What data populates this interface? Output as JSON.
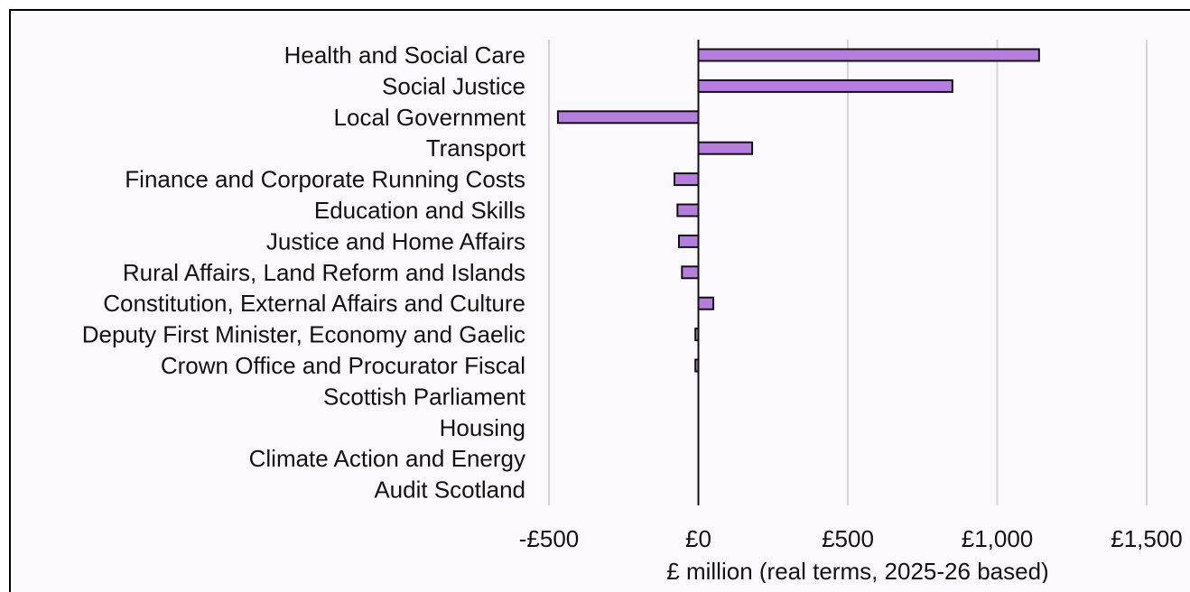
{
  "chart_data": {
    "type": "bar",
    "orientation": "horizontal",
    "title": "",
    "xlabel": "£ million (real terms, 2025-26 based)",
    "ylabel": "",
    "xlim": [
      -500,
      1500
    ],
    "grid": true,
    "legend": "none",
    "bar_color": "#b57edc",
    "x_ticks": [
      {
        "value": -500,
        "label": "-£500"
      },
      {
        "value": 0,
        "label": "£0"
      },
      {
        "value": 500,
        "label": "£500"
      },
      {
        "value": 1000,
        "label": "£1,000"
      },
      {
        "value": 1500,
        "label": "£1,500"
      }
    ],
    "categories": [
      "Health and Social Care",
      "Social Justice",
      "Local Government",
      "Transport",
      "Finance and Corporate Running Costs",
      "Education and Skills",
      "Justice and Home Affairs",
      "Rural Affairs, Land Reform and Islands",
      "Constitution, External Affairs and Culture",
      "Deputy First Minister, Economy and Gaelic",
      "Crown Office and Procurator Fiscal",
      "Scottish Parliament",
      "Housing",
      "Climate Action and Energy",
      "Audit Scotland"
    ],
    "values": [
      1140,
      850,
      -470,
      180,
      -80,
      -70,
      -65,
      -55,
      50,
      -10,
      -10,
      0,
      0,
      0,
      0
    ]
  }
}
